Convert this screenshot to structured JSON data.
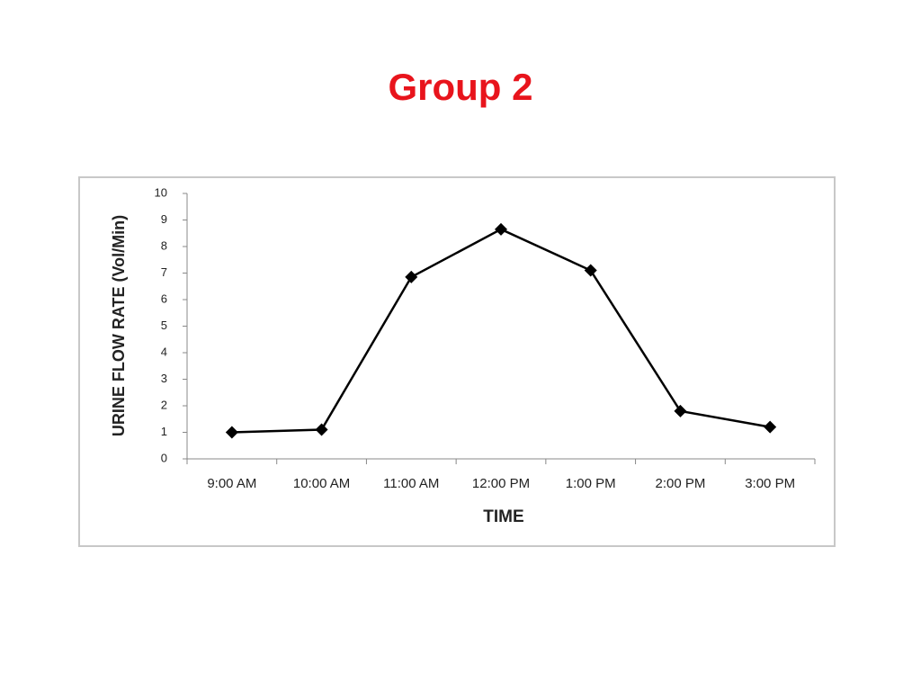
{
  "chart_data": {
    "type": "line",
    "title": "Group 2",
    "x_label": "TIME",
    "y_label": "URINE FLOW RATE (Vol/Min)",
    "categories": [
      "9:00 AM",
      "10:00 AM",
      "11:00 AM",
      "12:00 PM",
      "1:00 PM",
      "2:00 PM",
      "3:00 PM"
    ],
    "values": [
      1,
      1.1,
      6.85,
      8.65,
      7.1,
      1.8,
      1.2
    ],
    "color": "#000000",
    "ylim": [
      0,
      10
    ],
    "yticks": [
      0,
      1,
      2,
      3,
      4,
      5,
      6,
      7,
      8,
      9,
      10
    ],
    "grid": false
  }
}
